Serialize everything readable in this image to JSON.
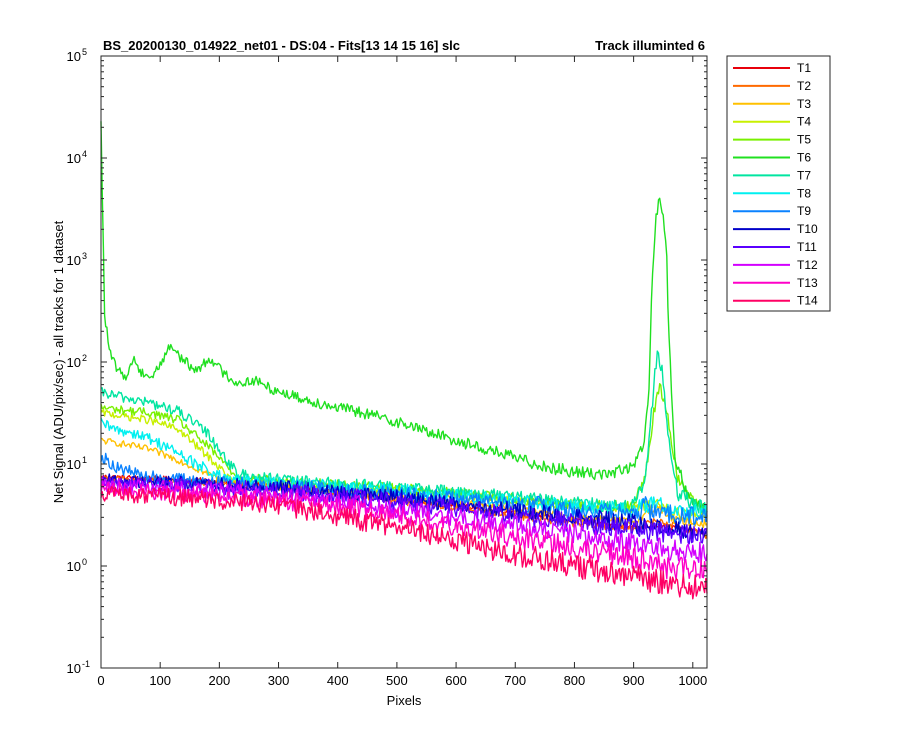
{
  "chart_data": {
    "type": "line",
    "title_left": "BS_20200130_014922_net01 - DS:04 - Fits[13  14  15  16]   slc",
    "title_right": "Track illuminted 6",
    "xlabel": "Pixels",
    "ylabel": "Net Signal (ADU/pix/sec) - all tracks for 1 dataset",
    "xlim": [
      0,
      1024
    ],
    "ylim": [
      0.1,
      100000
    ],
    "yscale": "log",
    "x_ticks": [
      "0",
      "100",
      "200",
      "300",
      "400",
      "500",
      "600",
      "700",
      "800",
      "900",
      "1000"
    ],
    "y_ticks": [
      {
        "base": "10",
        "exp": "-1"
      },
      {
        "base": "10",
        "exp": "0"
      },
      {
        "base": "10",
        "exp": "1"
      },
      {
        "base": "10",
        "exp": "2"
      },
      {
        "base": "10",
        "exp": "3"
      },
      {
        "base": "10",
        "exp": "4"
      },
      {
        "base": "10",
        "exp": "5"
      }
    ],
    "grid": false,
    "legend_position": "outside-right",
    "series": [
      {
        "name": "T1",
        "color": "#e8000b",
        "profile": [
          [
            0,
            7.5
          ],
          [
            100,
            7.2
          ],
          [
            200,
            6.8
          ],
          [
            300,
            6.0
          ],
          [
            400,
            5.3
          ],
          [
            500,
            4.5
          ],
          [
            600,
            3.9
          ],
          [
            700,
            3.3
          ],
          [
            800,
            2.8
          ],
          [
            900,
            2.4
          ],
          [
            940,
            2.5
          ],
          [
            1024,
            2.1
          ]
        ]
      },
      {
        "name": "T2",
        "color": "#ff6a00",
        "profile": [
          [
            0,
            7.2
          ],
          [
            100,
            6.8
          ],
          [
            200,
            6.4
          ],
          [
            300,
            5.7
          ],
          [
            400,
            5.0
          ],
          [
            500,
            4.3
          ],
          [
            600,
            3.7
          ],
          [
            700,
            3.1
          ],
          [
            800,
            2.6
          ],
          [
            900,
            2.3
          ],
          [
            940,
            2.8
          ],
          [
            1024,
            2.0
          ]
        ]
      },
      {
        "name": "T3",
        "color": "#ffc000",
        "profile": [
          [
            0,
            17
          ],
          [
            30,
            16
          ],
          [
            80,
            14
          ],
          [
            130,
            11
          ],
          [
            180,
            8
          ],
          [
            220,
            6.5
          ],
          [
            300,
            6.0
          ],
          [
            400,
            5.4
          ],
          [
            500,
            4.8
          ],
          [
            600,
            4.2
          ],
          [
            700,
            3.6
          ],
          [
            800,
            3.0
          ],
          [
            900,
            2.7
          ],
          [
            940,
            3.8
          ],
          [
            970,
            2.8
          ],
          [
            1024,
            2.6
          ]
        ]
      },
      {
        "name": "T4",
        "color": "#c8f000",
        "profile": [
          [
            0,
            32
          ],
          [
            30,
            30
          ],
          [
            80,
            27
          ],
          [
            130,
            22
          ],
          [
            180,
            12
          ],
          [
            220,
            7
          ],
          [
            300,
            6.4
          ],
          [
            400,
            5.9
          ],
          [
            500,
            5.4
          ],
          [
            600,
            4.9
          ],
          [
            700,
            4.4
          ],
          [
            800,
            3.9
          ],
          [
            900,
            3.6
          ],
          [
            940,
            4.2
          ],
          [
            970,
            3.4
          ],
          [
            1024,
            3.1
          ]
        ]
      },
      {
        "name": "T5",
        "color": "#79f000",
        "profile": [
          [
            0,
            36
          ],
          [
            30,
            34
          ],
          [
            80,
            32
          ],
          [
            130,
            27
          ],
          [
            180,
            15
          ],
          [
            230,
            7.5
          ],
          [
            300,
            6.8
          ],
          [
            400,
            6.3
          ],
          [
            500,
            5.8
          ],
          [
            600,
            5.2
          ],
          [
            700,
            4.6
          ],
          [
            800,
            4.0
          ],
          [
            900,
            3.8
          ],
          [
            920,
            8
          ],
          [
            935,
            35
          ],
          [
            945,
            57
          ],
          [
            955,
            35
          ],
          [
            975,
            7
          ],
          [
            1024,
            3.3
          ]
        ]
      },
      {
        "name": "T6",
        "color": "#20e020",
        "profile": [
          [
            0,
            21000
          ],
          [
            3,
            2500
          ],
          [
            6,
            300
          ],
          [
            15,
            120
          ],
          [
            30,
            80
          ],
          [
            45,
            72
          ],
          [
            55,
            115
          ],
          [
            65,
            80
          ],
          [
            75,
            78
          ],
          [
            85,
            70
          ],
          [
            100,
            95
          ],
          [
            118,
            148
          ],
          [
            135,
            110
          ],
          [
            160,
            82
          ],
          [
            185,
            110
          ],
          [
            205,
            80
          ],
          [
            230,
            62
          ],
          [
            260,
            66
          ],
          [
            290,
            54
          ],
          [
            350,
            42
          ],
          [
            400,
            36
          ],
          [
            450,
            31
          ],
          [
            500,
            26
          ],
          [
            550,
            21
          ],
          [
            600,
            17
          ],
          [
            650,
            14
          ],
          [
            700,
            11.5
          ],
          [
            750,
            9.5
          ],
          [
            800,
            8.3
          ],
          [
            860,
            8.0
          ],
          [
            900,
            9.5
          ],
          [
            915,
            14
          ],
          [
            925,
            40
          ],
          [
            932,
            800
          ],
          [
            938,
            2500
          ],
          [
            943,
            4300
          ],
          [
            950,
            2500
          ],
          [
            955,
            1500
          ],
          [
            960,
            150
          ],
          [
            970,
            12
          ],
          [
            990,
            5
          ],
          [
            1024,
            3.3
          ]
        ]
      },
      {
        "name": "T7",
        "color": "#00e5a0",
        "profile": [
          [
            0,
            50
          ],
          [
            30,
            46
          ],
          [
            80,
            40
          ],
          [
            130,
            33
          ],
          [
            180,
            20
          ],
          [
            230,
            8
          ],
          [
            300,
            7.0
          ],
          [
            400,
            6.4
          ],
          [
            500,
            5.9
          ],
          [
            600,
            5.3
          ],
          [
            700,
            4.7
          ],
          [
            800,
            4.1
          ],
          [
            900,
            3.9
          ],
          [
            920,
            7
          ],
          [
            932,
            40
          ],
          [
            940,
            135
          ],
          [
            948,
            80
          ],
          [
            958,
            20
          ],
          [
            975,
            5
          ],
          [
            1024,
            3.5
          ]
        ]
      },
      {
        "name": "T8",
        "color": "#00f0f0",
        "profile": [
          [
            0,
            25
          ],
          [
            20,
            22
          ],
          [
            60,
            20
          ],
          [
            110,
            15
          ],
          [
            160,
            10
          ],
          [
            210,
            7
          ],
          [
            300,
            6.5
          ],
          [
            400,
            6.0
          ],
          [
            500,
            5.5
          ],
          [
            600,
            4.9
          ],
          [
            700,
            4.3
          ],
          [
            800,
            3.8
          ],
          [
            900,
            3.6
          ],
          [
            940,
            4.2
          ],
          [
            970,
            3.5
          ],
          [
            1024,
            3.3
          ]
        ]
      },
      {
        "name": "T9",
        "color": "#0a82ff",
        "profile": [
          [
            0,
            12
          ],
          [
            30,
            9
          ],
          [
            80,
            7.5
          ],
          [
            200,
            6.6
          ],
          [
            300,
            6.1
          ],
          [
            400,
            5.7
          ],
          [
            500,
            5.1
          ],
          [
            600,
            4.6
          ],
          [
            700,
            4.0
          ],
          [
            735,
            3.8
          ],
          [
            742,
            5.5
          ],
          [
            750,
            3.8
          ],
          [
            800,
            3.5
          ],
          [
            900,
            3.3
          ],
          [
            915,
            3.5
          ],
          [
            920,
            5
          ],
          [
            925,
            3.4
          ],
          [
            1024,
            3.0
          ]
        ]
      },
      {
        "name": "T10",
        "color": "#0000c8",
        "profile": [
          [
            0,
            7.0
          ],
          [
            100,
            6.6
          ],
          [
            200,
            6.3
          ],
          [
            300,
            5.9
          ],
          [
            400,
            5.3
          ],
          [
            500,
            4.7
          ],
          [
            600,
            4.1
          ],
          [
            700,
            3.5
          ],
          [
            800,
            3.0
          ],
          [
            900,
            2.6
          ],
          [
            940,
            2.4
          ],
          [
            1024,
            2.1
          ]
        ]
      },
      {
        "name": "T11",
        "color": "#5a00ff",
        "profile": [
          [
            0,
            6.7
          ],
          [
            100,
            6.3
          ],
          [
            200,
            6.0
          ],
          [
            300,
            5.5
          ],
          [
            400,
            4.9
          ],
          [
            500,
            4.3
          ],
          [
            600,
            3.7
          ],
          [
            700,
            3.1
          ],
          [
            800,
            2.7
          ],
          [
            900,
            2.3
          ],
          [
            940,
            2.2
          ],
          [
            1024,
            1.9
          ]
        ]
      },
      {
        "name": "T12",
        "color": "#d200ff",
        "profile": [
          [
            0,
            6.2
          ],
          [
            100,
            5.8
          ],
          [
            200,
            5.4
          ],
          [
            300,
            4.9
          ],
          [
            400,
            4.3
          ],
          [
            500,
            3.6
          ],
          [
            600,
            3.0
          ],
          [
            700,
            2.5
          ],
          [
            800,
            2.1
          ],
          [
            900,
            1.7
          ],
          [
            940,
            1.5
          ],
          [
            1024,
            1.3
          ]
        ]
      },
      {
        "name": "T13",
        "color": "#ff00c8",
        "profile": [
          [
            0,
            5.7
          ],
          [
            100,
            5.3
          ],
          [
            200,
            4.9
          ],
          [
            300,
            4.4
          ],
          [
            400,
            3.8
          ],
          [
            500,
            3.1
          ],
          [
            600,
            2.5
          ],
          [
            700,
            1.9
          ],
          [
            800,
            1.5
          ],
          [
            900,
            1.2
          ],
          [
            940,
            1.0
          ],
          [
            1024,
            0.9
          ]
        ]
      },
      {
        "name": "T14",
        "color": "#ff0064",
        "profile": [
          [
            0,
            5.2
          ],
          [
            100,
            4.8
          ],
          [
            200,
            4.4
          ],
          [
            300,
            3.8
          ],
          [
            400,
            3.1
          ],
          [
            500,
            2.4
          ],
          [
            600,
            1.8
          ],
          [
            700,
            1.3
          ],
          [
            800,
            1.0
          ],
          [
            900,
            0.8
          ],
          [
            940,
            0.7
          ],
          [
            1024,
            0.6
          ]
        ]
      }
    ]
  }
}
